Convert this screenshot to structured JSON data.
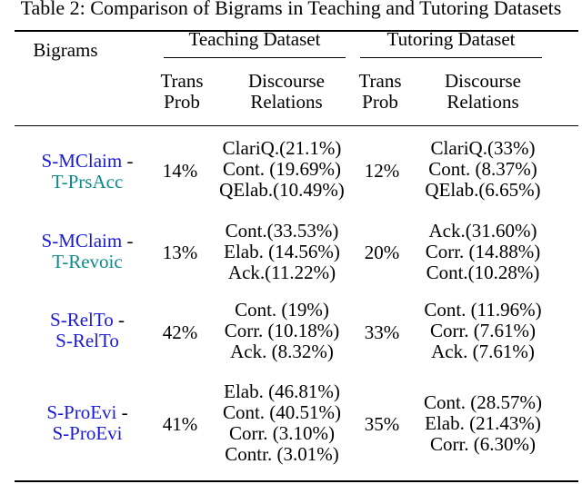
{
  "caption": "Table 2: Comparison of Bigrams in Teaching and Tutoring Datasets",
  "header": {
    "bigrams": "Bigrams",
    "teaching": "Teaching Dataset",
    "tutoring": "Tutoring Dataset",
    "trans_prob_line1": "Trans",
    "trans_prob_line2": "Prob",
    "discourse_line1": "Discourse",
    "discourse_line2": "Relations"
  },
  "rows": [
    {
      "first": "S-MClaim",
      "second": "T-PrsAcc",
      "second_color": "teal",
      "teach_prob": "14%",
      "teach_rel": [
        "ClariQ.(21.1%)",
        "Cont. (19.69%)",
        "QElab.(10.49%)"
      ],
      "tutor_prob": "12%",
      "tutor_rel": [
        "ClariQ.(33%)",
        "Cont. (8.37%)",
        "QElab.(6.65%)"
      ]
    },
    {
      "first": "S-MClaim",
      "second": "T-Revoic",
      "second_color": "teal",
      "teach_prob": "13%",
      "teach_rel": [
        "Cont.(33.53%)",
        "Elab. (14.56%)",
        "Ack.(11.22%)"
      ],
      "tutor_prob": "20%",
      "tutor_rel": [
        "Ack.(31.60%)",
        "Corr. (14.88%)",
        "Cont.(10.28%)"
      ]
    },
    {
      "first": "S-RelTo",
      "second": "S-RelTo",
      "second_color": "blue",
      "teach_prob": "42%",
      "teach_rel": [
        "Cont. (19%)",
        "Corr. (10.18%)",
        "Ack. (8.32%)"
      ],
      "tutor_prob": "33%",
      "tutor_rel": [
        "Cont. (11.96%)",
        "Corr. (7.61%)",
        "Ack. (7.61%)"
      ]
    },
    {
      "first": "S-ProEvi",
      "second": "S-ProEvi",
      "second_color": "blue",
      "teach_prob": "41%",
      "teach_rel": [
        "Elab. (46.81%)",
        "Cont. (40.51%)",
        "Corr. (3.10%)",
        "Contr. (3.01%)"
      ],
      "tutor_prob": "35%",
      "tutor_rel": [
        "Cont. (28.57%)",
        "Elab. (21.43%)",
        "Corr. (6.30%)"
      ]
    }
  ]
}
